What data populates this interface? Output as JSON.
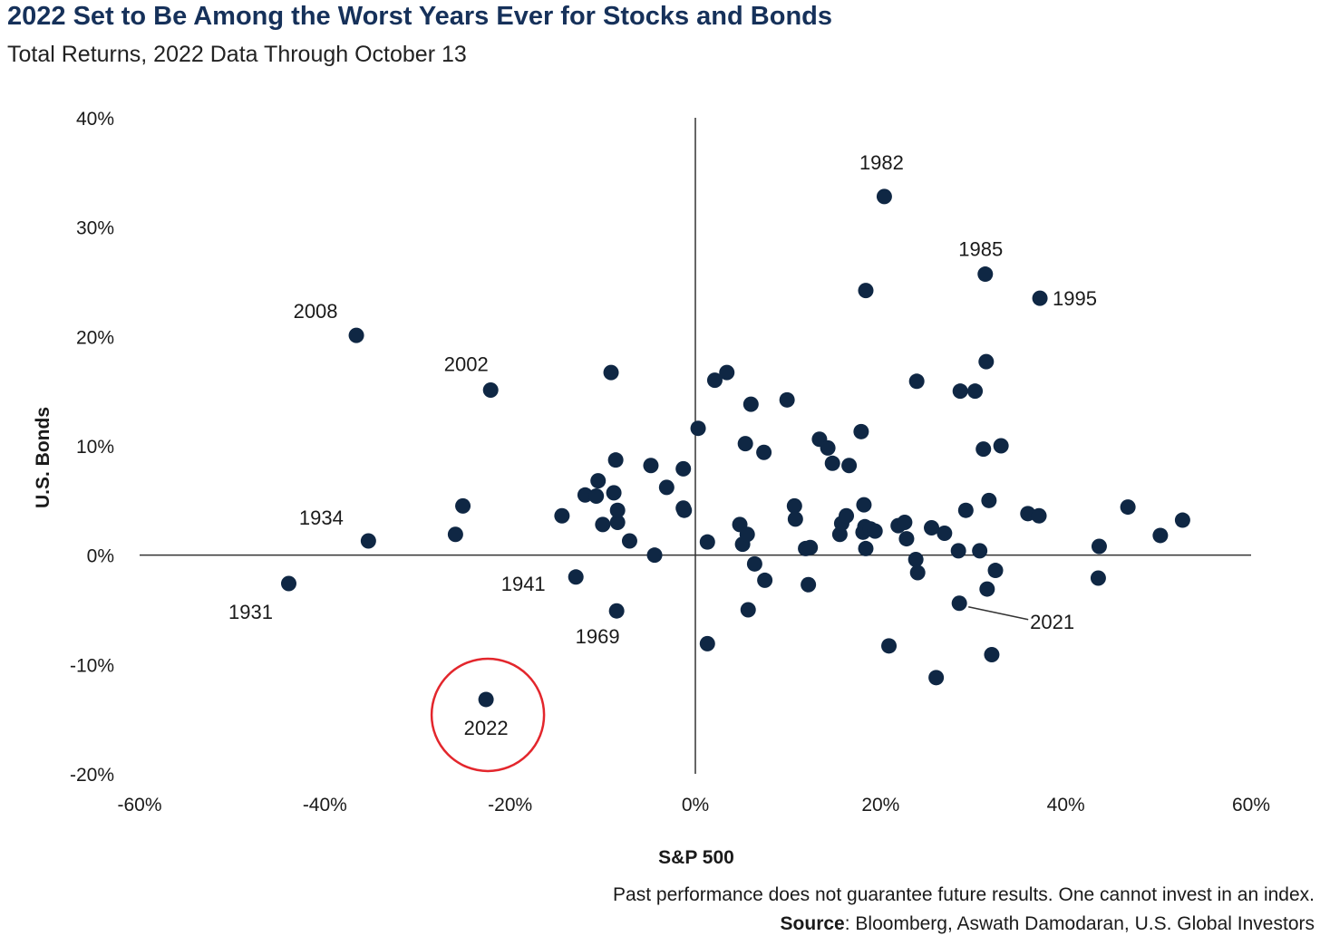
{
  "chart_data": {
    "type": "scatter",
    "title": "2022 Set to Be Among the Worst Years Ever for Stocks and Bonds",
    "subtitle": "Total Returns, 2022 Data Through October 13",
    "xlabel": "S&P 500",
    "ylabel": "U.S. Bonds",
    "xlim": [
      -60,
      60
    ],
    "ylim": [
      -20,
      40
    ],
    "x_ticks": [
      -60,
      -40,
      -20,
      0,
      20,
      40,
      60
    ],
    "y_ticks": [
      -20,
      -10,
      0,
      10,
      20,
      30,
      40
    ],
    "x_tick_labels": [
      "-60%",
      "-40%",
      "-20%",
      "0%",
      "20%",
      "40%",
      "60%"
    ],
    "y_tick_labels": [
      "-20%",
      "-10%",
      "0%",
      "10%",
      "20%",
      "30%",
      "40%"
    ],
    "grid": false,
    "marker_color": "#0f2744",
    "highlight_color": "#e3262c",
    "highlight_year": "2022",
    "labeled_points": [
      {
        "label": "1982",
        "x": 20.4,
        "y": 32.8
      },
      {
        "label": "1985",
        "x": 31.3,
        "y": 25.7
      },
      {
        "label": "1995",
        "x": 37.2,
        "y": 23.5
      },
      {
        "label": "2008",
        "x": -36.6,
        "y": 20.1
      },
      {
        "label": "2002",
        "x": -22.1,
        "y": 15.1
      },
      {
        "label": "1934",
        "x": -35.3,
        "y": 1.3
      },
      {
        "label": "1931",
        "x": -43.9,
        "y": -2.6
      },
      {
        "label": "1941",
        "x": -12.9,
        "y": -2.0
      },
      {
        "label": "1969",
        "x": -8.5,
        "y": -5.1
      },
      {
        "label": "2021",
        "x": 28.5,
        "y": -4.4
      },
      {
        "label": "2022",
        "x": -22.6,
        "y": -13.2
      }
    ],
    "points": [
      {
        "x": -25.9,
        "y": 1.9
      },
      {
        "x": -25.1,
        "y": 4.5
      },
      {
        "x": -14.4,
        "y": 3.6
      },
      {
        "x": -11.9,
        "y": 5.5
      },
      {
        "x": -10.7,
        "y": 5.4
      },
      {
        "x": -10.5,
        "y": 6.8
      },
      {
        "x": -10.0,
        "y": 2.8
      },
      {
        "x": -9.1,
        "y": 16.7
      },
      {
        "x": -8.8,
        "y": 5.7
      },
      {
        "x": -8.6,
        "y": 8.7
      },
      {
        "x": -8.4,
        "y": 3.0
      },
      {
        "x": -8.4,
        "y": 4.1
      },
      {
        "x": -7.1,
        "y": 1.3
      },
      {
        "x": -4.8,
        "y": 8.2
      },
      {
        "x": -4.4,
        "y": 0.0
      },
      {
        "x": -3.1,
        "y": 6.2
      },
      {
        "x": -1.3,
        "y": 7.9
      },
      {
        "x": -1.3,
        "y": 4.3
      },
      {
        "x": -1.2,
        "y": 4.1
      },
      {
        "x": 0.3,
        "y": 11.6
      },
      {
        "x": 1.3,
        "y": 1.2
      },
      {
        "x": 1.3,
        "y": -8.1
      },
      {
        "x": 2.1,
        "y": 16.0
      },
      {
        "x": 3.4,
        "y": 16.7
      },
      {
        "x": 4.8,
        "y": 2.8
      },
      {
        "x": 5.1,
        "y": 1.0
      },
      {
        "x": 5.4,
        "y": 10.2
      },
      {
        "x": 5.6,
        "y": 1.9
      },
      {
        "x": 5.7,
        "y": -5.0
      },
      {
        "x": 6.0,
        "y": 13.8
      },
      {
        "x": 6.4,
        "y": -0.8
      },
      {
        "x": 7.4,
        "y": 9.4
      },
      {
        "x": 7.5,
        "y": -2.3
      },
      {
        "x": 9.9,
        "y": 14.2
      },
      {
        "x": 10.7,
        "y": 4.5
      },
      {
        "x": 10.8,
        "y": 3.3
      },
      {
        "x": 11.9,
        "y": 0.6
      },
      {
        "x": 12.2,
        "y": -2.7
      },
      {
        "x": 12.4,
        "y": 0.7
      },
      {
        "x": 13.4,
        "y": 10.6
      },
      {
        "x": 14.3,
        "y": 9.8
      },
      {
        "x": 14.8,
        "y": 8.4
      },
      {
        "x": 15.6,
        "y": 1.9
      },
      {
        "x": 15.8,
        "y": 2.9
      },
      {
        "x": 16.3,
        "y": 3.6
      },
      {
        "x": 16.6,
        "y": 8.2
      },
      {
        "x": 17.9,
        "y": 11.3
      },
      {
        "x": 18.2,
        "y": 4.6
      },
      {
        "x": 18.1,
        "y": 2.1
      },
      {
        "x": 18.3,
        "y": 2.6
      },
      {
        "x": 18.4,
        "y": 24.2
      },
      {
        "x": 18.4,
        "y": 0.6
      },
      {
        "x": 18.9,
        "y": 2.4
      },
      {
        "x": 19.4,
        "y": 2.2
      },
      {
        "x": 20.9,
        "y": -8.3
      },
      {
        "x": 21.9,
        "y": 2.7
      },
      {
        "x": 22.6,
        "y": 3.0
      },
      {
        "x": 22.8,
        "y": 1.5
      },
      {
        "x": 23.9,
        "y": 15.9
      },
      {
        "x": 23.8,
        "y": -0.4
      },
      {
        "x": 24.0,
        "y": -1.6
      },
      {
        "x": 25.5,
        "y": 2.5
      },
      {
        "x": 26.0,
        "y": -11.2
      },
      {
        "x": 26.9,
        "y": 2.0
      },
      {
        "x": 28.4,
        "y": 0.4
      },
      {
        "x": 28.6,
        "y": 15.0
      },
      {
        "x": 29.2,
        "y": 4.1
      },
      {
        "x": 30.2,
        "y": 15.0
      },
      {
        "x": 30.7,
        "y": 0.4
      },
      {
        "x": 31.1,
        "y": 9.7
      },
      {
        "x": 31.4,
        "y": 17.7
      },
      {
        "x": 31.7,
        "y": 5.0
      },
      {
        "x": 31.5,
        "y": -3.1
      },
      {
        "x": 32.0,
        "y": -9.1
      },
      {
        "x": 32.4,
        "y": -1.4
      },
      {
        "x": 33.0,
        "y": 10.0
      },
      {
        "x": 35.9,
        "y": 3.8
      },
      {
        "x": 37.1,
        "y": 3.6
      },
      {
        "x": 43.6,
        "y": 0.8
      },
      {
        "x": 43.5,
        "y": -2.1
      },
      {
        "x": 46.7,
        "y": 4.4
      },
      {
        "x": 50.2,
        "y": 1.8
      },
      {
        "x": 52.6,
        "y": 3.2
      }
    ]
  },
  "footer": {
    "disclaimer": "Past performance does not guarantee future results. One cannot invest in an index.",
    "source_label": "Source",
    "source_text": ": Bloomberg, Aswath Damodaran, U.S. Global Investors"
  }
}
